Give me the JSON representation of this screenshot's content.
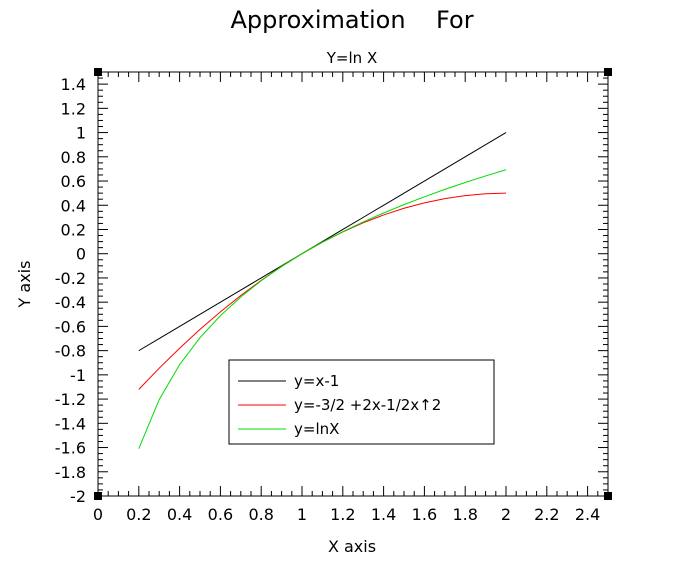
{
  "chart_data": {
    "type": "line",
    "title": "Approximation    For",
    "subtitle": "Y=ln X",
    "xlabel": "X axis",
    "ylabel": "Y axis",
    "xlim": [
      0,
      2.5
    ],
    "ylim": [
      -2,
      1.5
    ],
    "x_ticks": [
      "0",
      "0.2",
      "0.4",
      "0.6",
      "0.8",
      "1",
      "1.2",
      "1.4",
      "1.6",
      "1.8",
      "2",
      "2.2",
      "2.4"
    ],
    "y_ticks": [
      "1.4",
      "1.2",
      "1",
      "0.8",
      "0.6",
      "0.4",
      "0.2",
      "0",
      "-0.2",
      "-0.4",
      "-0.6",
      "-0.8",
      "-1",
      "-1.2",
      "-1.4",
      "-1.6",
      "-1.8",
      "-2"
    ],
    "grid": false,
    "legend_position": "bottom-center",
    "x": [
      0.2,
      0.3,
      0.4,
      0.5,
      0.6,
      0.7,
      0.8,
      0.9,
      1.0,
      1.1,
      1.2,
      1.3,
      1.4,
      1.5,
      1.6,
      1.7,
      1.8,
      1.9,
      2.0
    ],
    "series": [
      {
        "name": "y=x-1",
        "color": "#000000",
        "values": [
          -0.8,
          -0.7,
          -0.6,
          -0.5,
          -0.4,
          -0.3,
          -0.2,
          -0.1,
          0.0,
          0.1,
          0.2,
          0.3,
          0.4,
          0.5,
          0.6,
          0.7,
          0.8,
          0.9,
          1.0
        ]
      },
      {
        "name": "y=-3/2 +2x-1/2x↑2",
        "color": "#ff0000",
        "values": [
          -1.12,
          -0.945,
          -0.78,
          -0.625,
          -0.48,
          -0.345,
          -0.22,
          -0.105,
          0.0,
          0.095,
          0.18,
          0.255,
          0.32,
          0.375,
          0.42,
          0.455,
          0.48,
          0.495,
          0.5
        ]
      },
      {
        "name": "y=lnX",
        "color": "#00dd00",
        "values": [
          -1.609,
          -1.204,
          -0.916,
          -0.693,
          -0.511,
          -0.357,
          -0.223,
          -0.105,
          0.0,
          0.095,
          0.182,
          0.262,
          0.336,
          0.405,
          0.47,
          0.531,
          0.588,
          0.642,
          0.693
        ]
      }
    ]
  }
}
